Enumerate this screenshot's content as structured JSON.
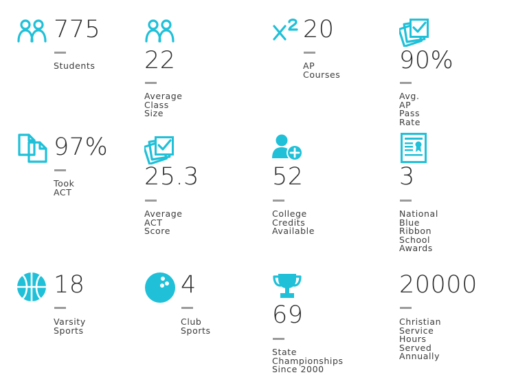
{
  "colors": {
    "accent": "#1fc0d8",
    "text": "#2e2e2e",
    "divider": "#9a9a9a"
  },
  "stats": [
    {
      "icon": "people-icon",
      "value": "775",
      "label": "Students"
    },
    {
      "icon": "people-icon",
      "value": "22",
      "label": "Average Class Size"
    },
    {
      "icon": "x-squared-icon",
      "value": "20",
      "label": "AP Courses"
    },
    {
      "icon": "checked-papers-icon",
      "value": "90%",
      "label": "Avg. AP Pass Rate"
    },
    {
      "icon": "documents-icon",
      "value": "97%",
      "label": "Took ACT"
    },
    {
      "icon": "checked-papers-icon",
      "value": "25.3",
      "label": "Average ACT Score"
    },
    {
      "icon": "add-user-icon",
      "value": "52",
      "label": "College Credits\nAvailable"
    },
    {
      "icon": "certificate-icon",
      "value": "3",
      "label": "National Blue Ribbon\nSchool Awards"
    },
    {
      "icon": "basketball-icon",
      "value": "18",
      "label": "Varsity Sports"
    },
    {
      "icon": "bowling-ball-icon",
      "value": "4",
      "label": "Club Sports"
    },
    {
      "icon": "trophy-icon",
      "value": "69",
      "label": "State Championships\nSince 2000"
    },
    {
      "icon": "none",
      "value": "20000",
      "label": "Christian Service Hours\nServed Annually"
    }
  ]
}
